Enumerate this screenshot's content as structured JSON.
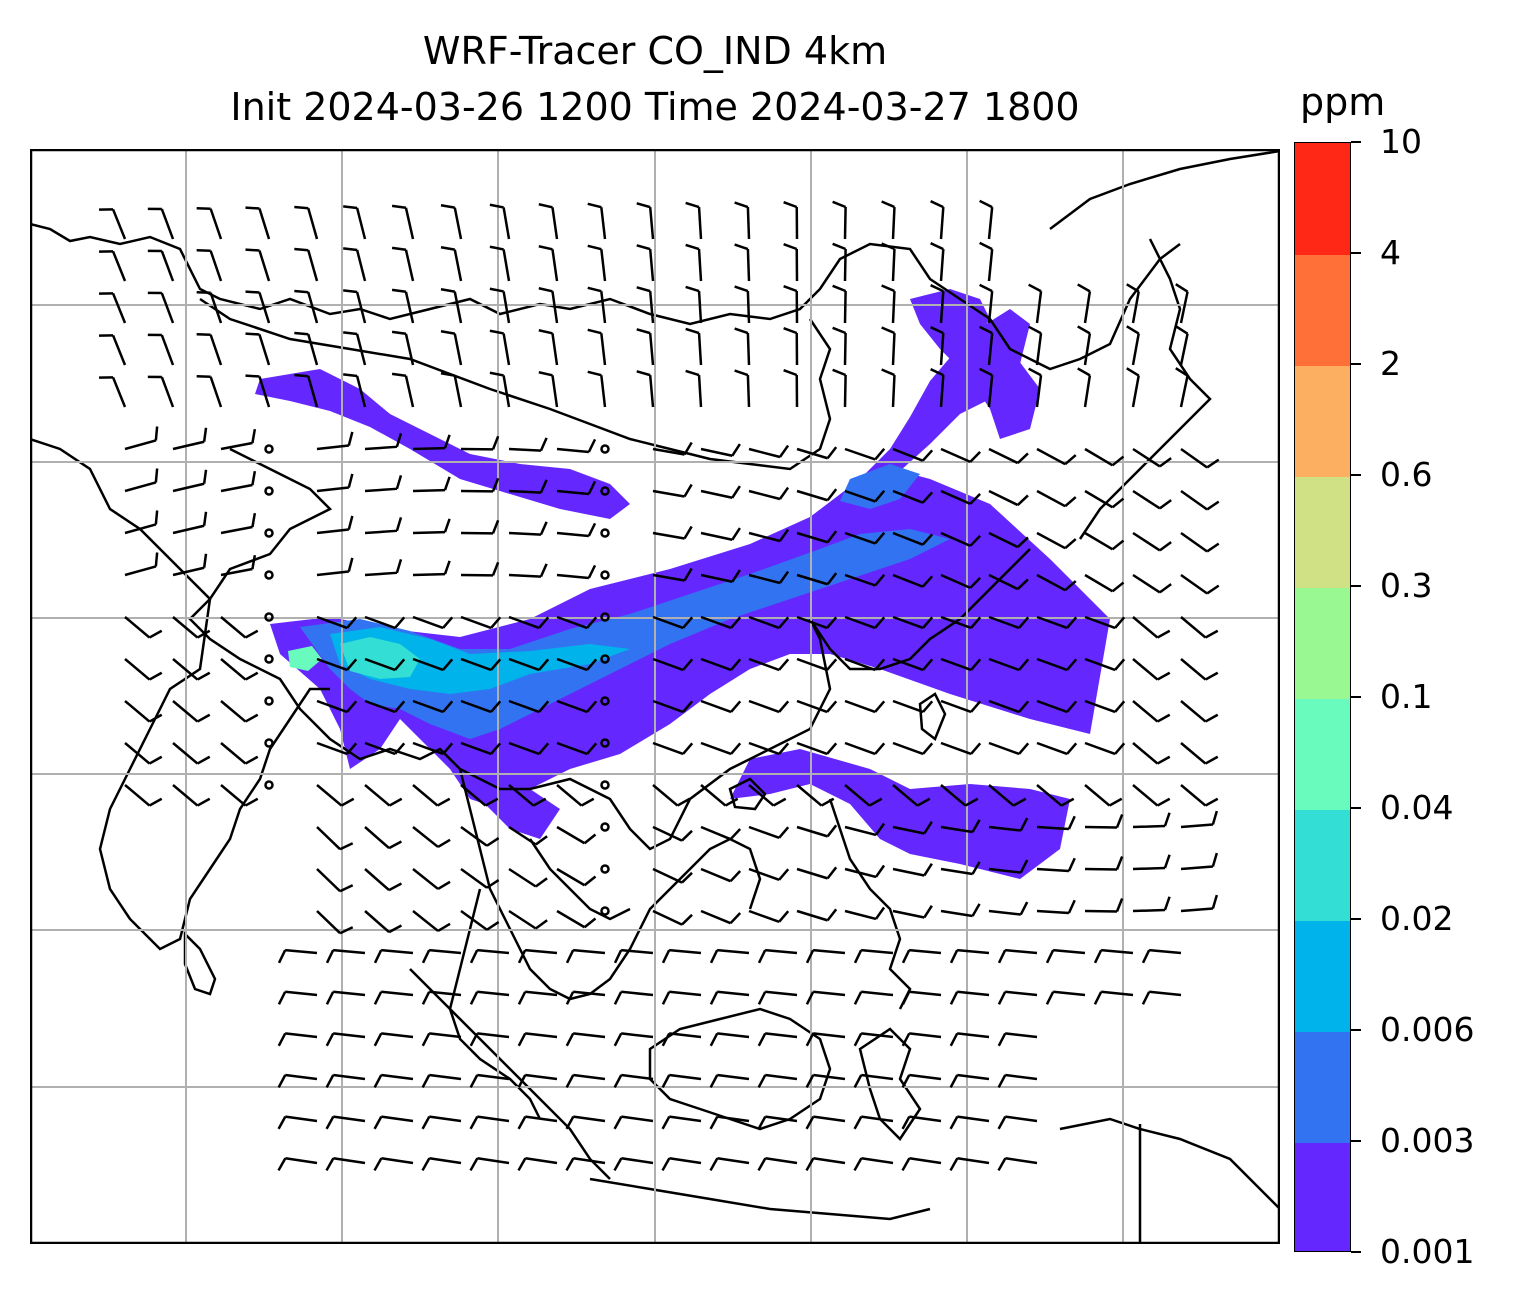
{
  "title": {
    "line1": "WRF-Tracer CO_IND 4km",
    "line2": "Init 2024-03-26 1200 Time 2024-03-27 1800"
  },
  "colorbar": {
    "unit": "ppm",
    "levels": [
      "0.001",
      "0.003",
      "0.006",
      "0.02",
      "0.04",
      "0.1",
      "0.3",
      "0.6",
      "2",
      "4",
      "10"
    ],
    "colors": [
      "#6428ff",
      "#3273f2",
      "#00b3ea",
      "#33ded5",
      "#69fbbd",
      "#99f892",
      "#cfe184",
      "#fdaf61",
      "#ff7038",
      "#ff2716"
    ]
  },
  "map": {
    "gridlines": true,
    "colors": {
      "coast": "#000000",
      "grid": "#b0b0b0",
      "barb": "#000000",
      "plume_low": "#6428ff",
      "plume_mid": "#3273f2",
      "plume_core": "#00b3ea",
      "plume_peak": "#33ded5",
      "plume_max": "#69fbbd"
    }
  }
}
